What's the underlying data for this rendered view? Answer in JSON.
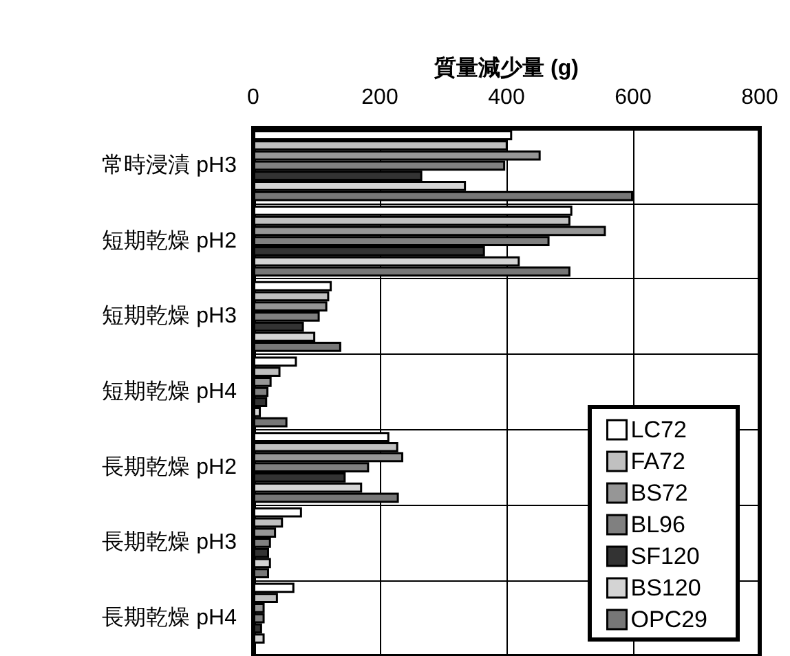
{
  "chart_data": {
    "type": "bar",
    "orientation": "horizontal",
    "xlabel": "質量減少量 (g)",
    "categories": [
      "常時浸漬 pH3",
      "短期乾燥 pH2",
      "短期乾燥 pH3",
      "短期乾燥 pH4",
      "長期乾燥 pH2",
      "長期乾燥 pH3",
      "長期乾燥 pH4"
    ],
    "series": [
      {
        "name": "LC72",
        "color": "#ffffff",
        "values": [
          409,
          504,
          124,
          69,
          215,
          77,
          65
        ]
      },
      {
        "name": "FA72",
        "color": "#c0c0c0",
        "values": [
          402,
          501,
          120,
          43,
          229,
          47,
          39
        ]
      },
      {
        "name": "BS72",
        "color": "#969696",
        "values": [
          454,
          557,
          117,
          29,
          237,
          36,
          18
        ]
      },
      {
        "name": "BL96",
        "color": "#808080",
        "values": [
          398,
          468,
          105,
          24,
          183,
          28,
          18
        ]
      },
      {
        "name": "SF120",
        "color": "#333333",
        "values": [
          267,
          366,
          80,
          22,
          146,
          25,
          14
        ]
      },
      {
        "name": "BS120",
        "color": "#d4d4d4",
        "values": [
          336,
          421,
          98,
          12,
          172,
          28,
          18
        ]
      },
      {
        "name": "OPC29",
        "color": "#777777",
        "values": [
          600,
          501,
          139,
          54,
          230,
          25,
          null
        ]
      }
    ],
    "xlim": [
      0,
      800
    ],
    "xticks": [
      0,
      200,
      400,
      600,
      800
    ],
    "grid": true,
    "legend": "bottom right"
  }
}
